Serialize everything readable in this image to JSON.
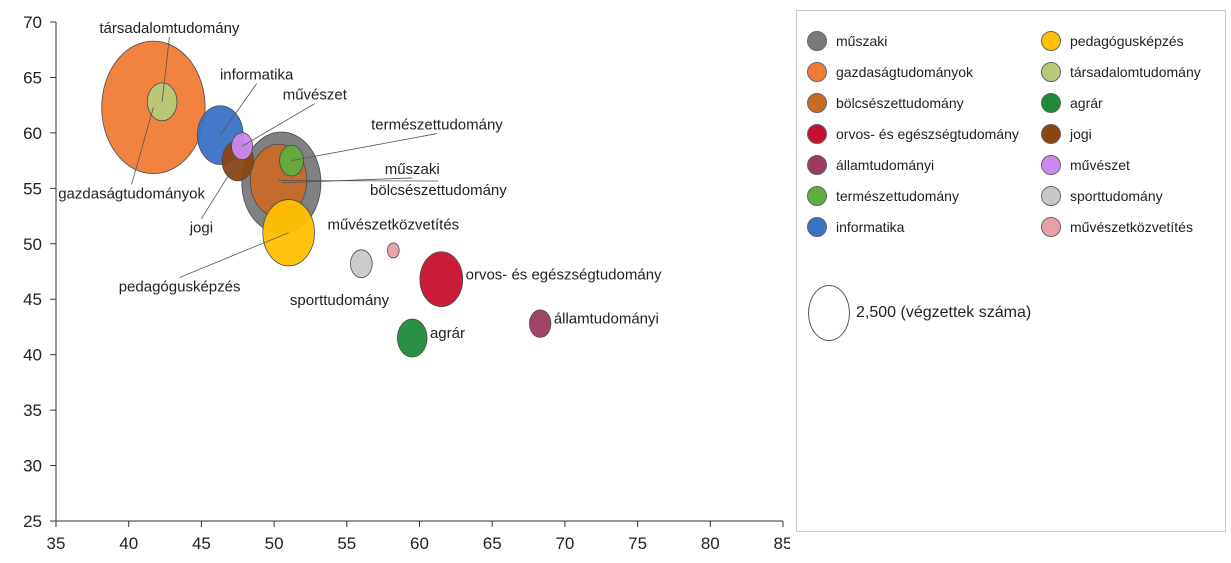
{
  "chart_data": {
    "type": "bubble",
    "xlim": [
      35,
      85
    ],
    "ylim": [
      25,
      70
    ],
    "x_ticks": [
      35,
      40,
      45,
      50,
      55,
      60,
      65,
      70,
      75,
      80,
      85
    ],
    "y_ticks": [
      25,
      30,
      35,
      40,
      45,
      50,
      55,
      60,
      65,
      70
    ],
    "grid": false,
    "legend_position": "right",
    "series": [
      {
        "name": "műszaki",
        "x": 50.5,
        "y": 55.5,
        "size": 8200,
        "color": "#7a7a7a"
      },
      {
        "name": "gazdaságtudományok",
        "x": 41.7,
        "y": 62.3,
        "size": 14000,
        "color": "#f07b35"
      },
      {
        "name": "bölcsészettudomány",
        "x": 50.3,
        "y": 55.7,
        "size": 4200,
        "color": "#c66a28"
      },
      {
        "name": "orvos- és egészségtudomány",
        "x": 61.5,
        "y": 46.8,
        "size": 2400,
        "color": "#c8102e"
      },
      {
        "name": "államtudományi",
        "x": 68.3,
        "y": 42.8,
        "size": 600,
        "color": "#9c3a62"
      },
      {
        "name": "természettudomány",
        "x": 51.2,
        "y": 57.5,
        "size": 750,
        "color": "#5fae3e"
      },
      {
        "name": "informatika",
        "x": 46.3,
        "y": 59.8,
        "size": 2750,
        "color": "#3a72c6"
      },
      {
        "name": "pedagógusképzés",
        "x": 51.0,
        "y": 51.0,
        "size": 3500,
        "color": "#ffc000"
      },
      {
        "name": "társadalomtudomány",
        "x": 42.3,
        "y": 62.8,
        "size": 1150,
        "color": "#b7c97a"
      },
      {
        "name": "agrár",
        "x": 59.5,
        "y": 41.5,
        "size": 1150,
        "color": "#1e8a3a"
      },
      {
        "name": "jogi",
        "x": 47.5,
        "y": 57.5,
        "size": 1300,
        "color": "#8b4513"
      },
      {
        "name": "művészet",
        "x": 47.8,
        "y": 58.8,
        "size": 580,
        "color": "#cc88ee"
      },
      {
        "name": "sporttudomány",
        "x": 56.0,
        "y": 48.2,
        "size": 620,
        "color": "#c8c8c8"
      },
      {
        "name": "művészetközvetítés",
        "x": 58.2,
        "y": 49.4,
        "size": 180,
        "color": "#e8a0a8"
      }
    ],
    "annotations": [
      {
        "text": "társadalomtudomány",
        "series": "társadalomtudomány"
      },
      {
        "text": "informatika",
        "series": "informatika"
      },
      {
        "text": "művészet",
        "series": "művészet"
      },
      {
        "text": "természettudomány",
        "series": "természettudomány"
      },
      {
        "text": "műszaki",
        "series": "műszaki"
      },
      {
        "text": "bölcsészettudomány",
        "series": "bölcsészettudomány"
      },
      {
        "text": "gazdaságtudományok",
        "series": "gazdaságtudományok"
      },
      {
        "text": "jogi",
        "series": "jogi"
      },
      {
        "text": "művészetközvetítés",
        "series": "művészetközvetítés"
      },
      {
        "text": "pedagógusképzés",
        "series": "pedagógusképzés"
      },
      {
        "text": "sporttudomány",
        "series": "sporttudomány"
      },
      {
        "text": "orvos- és egészségtudomány",
        "series": "orvos- és egészségtudomány"
      },
      {
        "text": "államtudományi",
        "series": "államtudományi"
      },
      {
        "text": "agrár",
        "series": "agrár"
      }
    ],
    "size_key": {
      "value": 2500,
      "label": "2,500 (végzettek száma)"
    }
  },
  "legend": {
    "items": [
      {
        "label": "műszaki",
        "color": "#7a7a7a"
      },
      {
        "label": "pedagógusképzés",
        "color": "#ffc000"
      },
      {
        "label": "gazdaságtudományok",
        "color": "#f07b35"
      },
      {
        "label": "társadalomtudomány",
        "color": "#b7c97a"
      },
      {
        "label": "bölcsészettudomány",
        "color": "#c66a28"
      },
      {
        "label": "agrár",
        "color": "#1e8a3a"
      },
      {
        "label": "orvos- és egészségtudomány",
        "color": "#c8102e"
      },
      {
        "label": "jogi",
        "color": "#8b4513"
      },
      {
        "label": "államtudományi",
        "color": "#9c3a62"
      },
      {
        "label": "művészet",
        "color": "#cc88ee"
      },
      {
        "label": "természettudomány",
        "color": "#5fae3e"
      },
      {
        "label": "sporttudomány",
        "color": "#c8c8c8"
      },
      {
        "label": "informatika",
        "color": "#3a72c6"
      },
      {
        "label": "művészetközvetítés",
        "color": "#e8a0a8"
      }
    ]
  }
}
